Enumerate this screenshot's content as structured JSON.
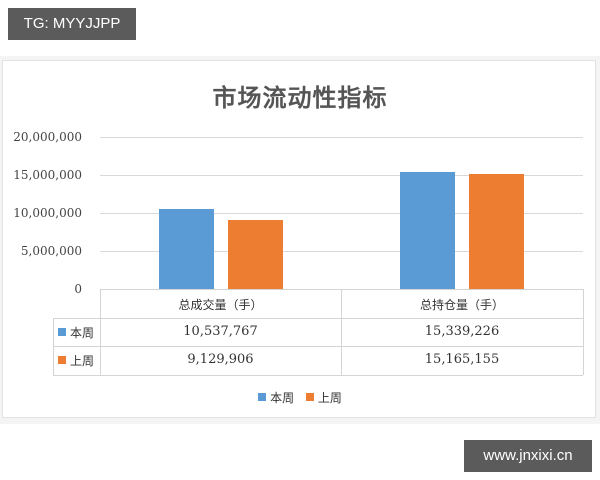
{
  "watermark_top": "TG: MYYJJPP",
  "watermark_bottom": "www.jnxixi.cn",
  "chart_data": {
    "type": "bar",
    "title": "市场流动性指标",
    "categories": [
      "总成交量（手）",
      "总持仓量（手）"
    ],
    "series": [
      {
        "name": "本周",
        "color": "#5b9bd5",
        "values": [
          10537767,
          15339226
        ]
      },
      {
        "name": "上周",
        "color": "#ed7d31",
        "values": [
          9129906,
          15165155
        ]
      }
    ],
    "yticks": [
      "0",
      "5,000,000",
      "10,000,000",
      "15,000,000",
      "20,000,000"
    ],
    "ylim": [
      0,
      20000000
    ],
    "grid": true,
    "legend_position": "bottom",
    "data_table": {
      "headers": [
        "总成交量（手）",
        "总持仓量（手）"
      ],
      "rows": [
        {
          "label": "本周",
          "values": [
            "10,537,767",
            "15,339,226"
          ]
        },
        {
          "label": "上周",
          "values": [
            "9,129,906",
            "15,165,155"
          ]
        }
      ]
    }
  }
}
